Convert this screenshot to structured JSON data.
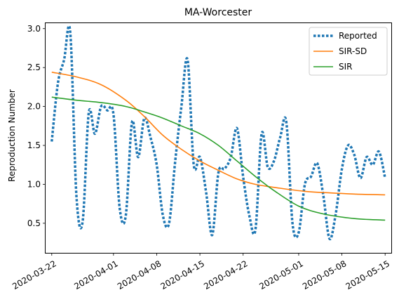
{
  "chart_data": {
    "type": "line",
    "title": "MA-Worcester",
    "xlabel": "",
    "ylabel": "Reproduction Number",
    "x_range": [
      "2020-03-21",
      "2020-05-16"
    ],
    "ylim": [
      0.12,
      3.07
    ],
    "x_ticks": [
      "2020-03-22",
      "2020-04-01",
      "2020-04-08",
      "2020-04-15",
      "2020-04-22",
      "2020-05-01",
      "2020-05-08",
      "2020-05-15"
    ],
    "y_ticks": [
      0.5,
      1.0,
      1.5,
      2.0,
      2.5,
      3.0
    ],
    "y_tick_labels": [
      "0.5",
      "1.0",
      "1.5",
      "2.0",
      "2.5",
      "3.0"
    ],
    "legend_position": "top-right",
    "grid": false,
    "series": [
      {
        "name": "Reported",
        "color": "#1f77b4",
        "style": "dotted",
        "x": [
          "2020-03-22",
          "2020-03-23",
          "2020-03-24",
          "2020-03-25",
          "2020-03-26",
          "2020-03-27",
          "2020-03-28",
          "2020-03-29",
          "2020-03-30",
          "2020-03-31",
          "2020-04-01",
          "2020-04-02",
          "2020-04-03",
          "2020-04-04",
          "2020-04-05",
          "2020-04-06",
          "2020-04-07",
          "2020-04-08",
          "2020-04-09",
          "2020-04-10",
          "2020-04-11",
          "2020-04-12",
          "2020-04-13",
          "2020-04-14",
          "2020-04-15",
          "2020-04-16",
          "2020-04-17",
          "2020-04-18",
          "2020-04-19",
          "2020-04-20",
          "2020-04-21",
          "2020-04-22",
          "2020-04-23",
          "2020-04-24",
          "2020-04-25",
          "2020-04-26",
          "2020-04-27",
          "2020-04-28",
          "2020-04-29",
          "2020-04-30",
          "2020-05-01",
          "2020-05-02",
          "2020-05-03",
          "2020-05-04",
          "2020-05-05",
          "2020-05-06",
          "2020-05-07",
          "2020-05-08",
          "2020-05-09",
          "2020-05-10",
          "2020-05-11",
          "2020-05-12",
          "2020-05-13",
          "2020-05-14",
          "2020-05-15"
        ],
        "values": [
          1.55,
          2.3,
          2.6,
          2.95,
          0.85,
          0.52,
          1.92,
          1.65,
          2.0,
          1.95,
          1.9,
          0.7,
          0.6,
          1.8,
          1.35,
          1.85,
          1.6,
          1.25,
          0.6,
          0.5,
          1.3,
          2.0,
          2.6,
          1.25,
          1.35,
          0.9,
          0.35,
          1.15,
          1.2,
          1.35,
          1.72,
          1.1,
          0.6,
          0.42,
          1.65,
          1.22,
          1.3,
          1.6,
          1.8,
          0.5,
          0.38,
          1.0,
          1.1,
          1.27,
          0.85,
          0.3,
          0.62,
          1.2,
          1.5,
          1.38,
          1.08,
          1.35,
          1.25,
          1.42,
          1.08
        ]
      },
      {
        "name": "SIR-SD",
        "color": "#ff7f0e",
        "style": "solid",
        "x": [
          "2020-03-22",
          "2020-03-26",
          "2020-03-30",
          "2020-04-03",
          "2020-04-06",
          "2020-04-09",
          "2020-04-12",
          "2020-04-15",
          "2020-04-18",
          "2020-04-21",
          "2020-04-24",
          "2020-04-28",
          "2020-05-02",
          "2020-05-06",
          "2020-05-10",
          "2020-05-15"
        ],
        "values": [
          2.44,
          2.38,
          2.28,
          2.08,
          1.87,
          1.63,
          1.45,
          1.3,
          1.18,
          1.07,
          1.0,
          0.95,
          0.91,
          0.89,
          0.875,
          0.865
        ]
      },
      {
        "name": "SIR",
        "color": "#2ca02c",
        "style": "solid",
        "x": [
          "2020-03-22",
          "2020-03-26",
          "2020-03-30",
          "2020-04-03",
          "2020-04-06",
          "2020-04-09",
          "2020-04-12",
          "2020-04-15",
          "2020-04-18",
          "2020-04-21",
          "2020-04-24",
          "2020-04-27",
          "2020-05-01",
          "2020-05-05",
          "2020-05-10",
          "2020-05-15"
        ],
        "values": [
          2.12,
          2.08,
          2.05,
          2.0,
          1.93,
          1.85,
          1.75,
          1.65,
          1.5,
          1.3,
          1.1,
          0.92,
          0.72,
          0.62,
          0.56,
          0.54
        ]
      }
    ]
  }
}
